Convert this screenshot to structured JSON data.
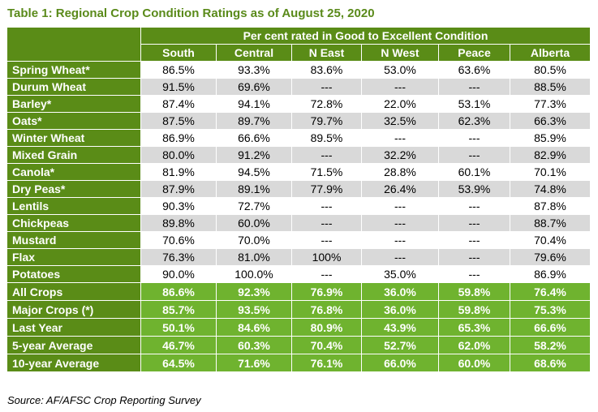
{
  "title": "Table 1: Regional Crop Condition Ratings as of August 25, 2020",
  "header": {
    "span_label": "Per cent rated in Good to Excellent Condition",
    "columns": [
      "South",
      "Central",
      "N East",
      "N West",
      "Peace",
      "Alberta"
    ]
  },
  "rows": [
    {
      "label": "Spring Wheat*",
      "values": [
        "86.5%",
        "93.3%",
        "83.6%",
        "53.0%",
        "63.6%",
        "80.5%"
      ]
    },
    {
      "label": "Durum Wheat",
      "values": [
        "91.5%",
        "69.6%",
        "---",
        "---",
        "---",
        "88.5%"
      ]
    },
    {
      "label": "Barley*",
      "values": [
        "87.4%",
        "94.1%",
        "72.8%",
        "22.0%",
        "53.1%",
        "77.3%"
      ]
    },
    {
      "label": "Oats*",
      "values": [
        "87.5%",
        "89.7%",
        "79.7%",
        "32.5%",
        "62.3%",
        "66.3%"
      ]
    },
    {
      "label": "Winter Wheat",
      "values": [
        "86.9%",
        "66.6%",
        "89.5%",
        "---",
        "---",
        "85.9%"
      ]
    },
    {
      "label": "Mixed Grain",
      "values": [
        "80.0%",
        "91.2%",
        "---",
        "32.2%",
        "---",
        "82.9%"
      ]
    },
    {
      "label": "Canola*",
      "values": [
        "81.9%",
        "94.5%",
        "71.5%",
        "28.8%",
        "60.1%",
        "70.1%"
      ]
    },
    {
      "label": "Dry Peas*",
      "values": [
        "87.9%",
        "89.1%",
        "77.9%",
        "26.4%",
        "53.9%",
        "74.8%"
      ]
    },
    {
      "label": "Lentils",
      "values": [
        "90.3%",
        "72.7%",
        "---",
        "---",
        "---",
        "87.8%"
      ]
    },
    {
      "label": "Chickpeas",
      "values": [
        "89.8%",
        "60.0%",
        "---",
        "---",
        "---",
        "88.7%"
      ]
    },
    {
      "label": "Mustard",
      "values": [
        "70.6%",
        "70.0%",
        "---",
        "---",
        "---",
        "70.4%"
      ]
    },
    {
      "label": "Flax",
      "values": [
        "76.3%",
        "81.0%",
        "100%",
        "---",
        "---",
        "79.6%"
      ]
    },
    {
      "label": "Potatoes",
      "values": [
        "90.0%",
        "100.0%",
        "---",
        "35.0%",
        "---",
        "86.9%"
      ]
    }
  ],
  "summary_rows": [
    {
      "label": "All Crops",
      "values": [
        "86.6%",
        "92.3%",
        "76.9%",
        "36.0%",
        "59.8%",
        "76.4%"
      ]
    },
    {
      "label": "Major Crops (*)",
      "values": [
        "85.7%",
        "93.5%",
        "76.8%",
        "36.0%",
        "59.8%",
        "75.3%"
      ]
    },
    {
      "label": "Last Year",
      "values": [
        "50.1%",
        "84.6%",
        "80.9%",
        "43.9%",
        "65.3%",
        "66.6%"
      ]
    },
    {
      "label": "5-year Average",
      "values": [
        "46.7%",
        "60.3%",
        "70.4%",
        "52.7%",
        "62.0%",
        "58.2%"
      ]
    },
    {
      "label": "10-year Average",
      "values": [
        "64.5%",
        "71.6%",
        "76.1%",
        "66.0%",
        "60.0%",
        "68.6%"
      ]
    }
  ],
  "source": "Source: AF/AFSC Crop Reporting Survey",
  "colors": {
    "header_green": "#5a8c17",
    "summary_green": "#6fb32f",
    "title_green": "#5a8a1a",
    "shaded_row": "#d9d9d9"
  }
}
